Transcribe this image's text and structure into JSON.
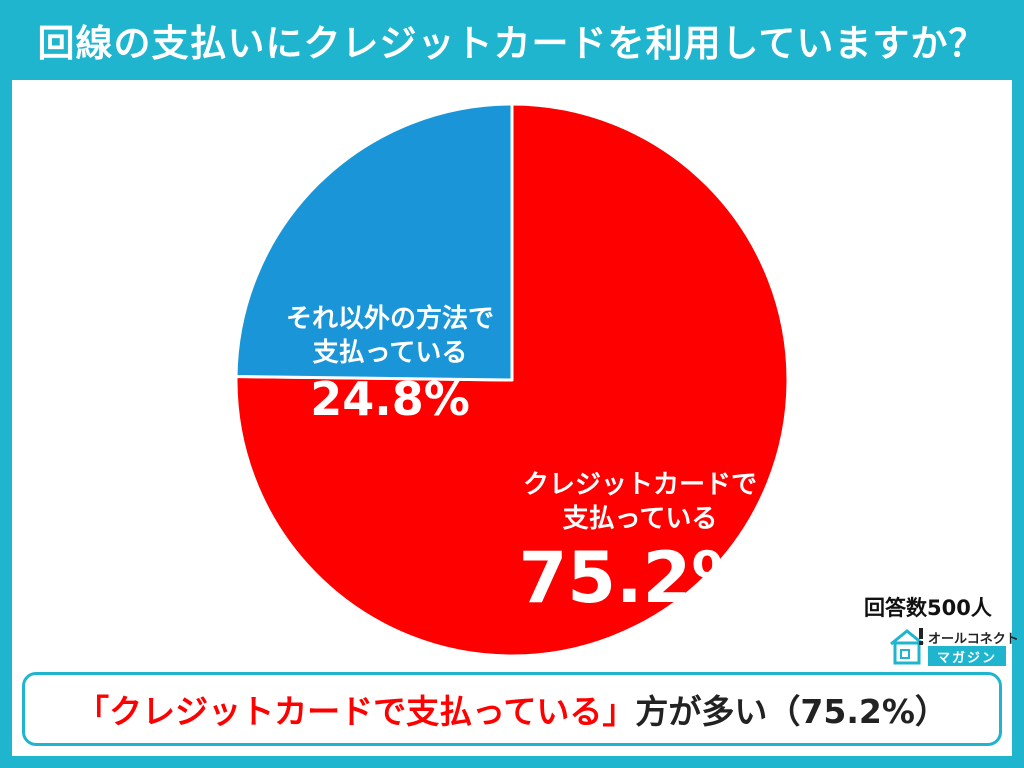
{
  "chart_data": {
    "type": "pie",
    "title": "回線の支払いにクレジットカードを利用していますか？",
    "slices": [
      {
        "label_line1": "クレジットカードで",
        "label_line2": "支払っている",
        "value": 75.2,
        "display": "75.2%",
        "color": "#ff0000"
      },
      {
        "label_line1": "それ以外の方法で",
        "label_line2": "支払っている",
        "value": 24.8,
        "display": "24.8%",
        "color": "#1a96d8"
      }
    ]
  },
  "respondents_note": "回答数500人",
  "logo": {
    "line1": "オールコネクト",
    "line2": "マガジン"
  },
  "summary": {
    "highlight": "「クレジットカードで支払っている」",
    "rest": "方が多い（75.2%）"
  },
  "colors": {
    "accent": "#1fb5cf"
  }
}
